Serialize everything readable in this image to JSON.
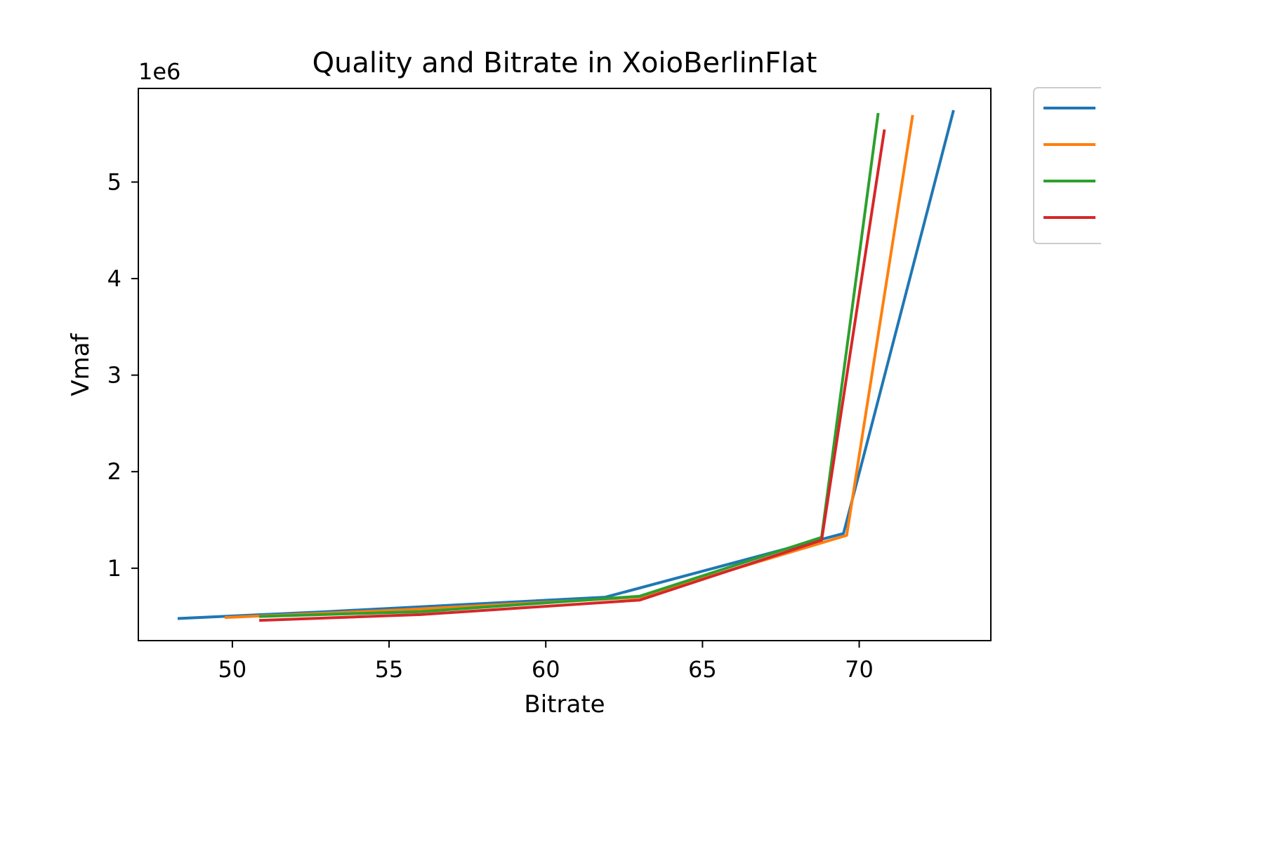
{
  "chart_data": {
    "type": "line",
    "title": "Quality and Bitrate in XoioBerlinFlat",
    "xlabel": "Bitrate",
    "ylabel": "Vmaf",
    "y_offset_label": "1e6",
    "xlim": [
      47,
      74.2
    ],
    "ylim": [
      0.25,
      5.97
    ],
    "x_ticks": [
      50,
      55,
      60,
      65,
      70
    ],
    "y_ticks": [
      1,
      2,
      3,
      4,
      5
    ],
    "grid": false,
    "legend": "upper right outside (entries without visible labels)",
    "series": [
      {
        "color": "#1f77b4",
        "points": [
          [
            48.3,
            0.48
          ],
          [
            53.0,
            0.55
          ],
          [
            61.9,
            0.7
          ],
          [
            69.5,
            1.36
          ],
          [
            73.0,
            5.73
          ]
        ]
      },
      {
        "color": "#ff7f0e",
        "points": [
          [
            49.8,
            0.49
          ],
          [
            55.5,
            0.57
          ],
          [
            63.0,
            0.7
          ],
          [
            69.6,
            1.34
          ],
          [
            71.7,
            5.68
          ]
        ]
      },
      {
        "color": "#2ca02c",
        "points": [
          [
            50.9,
            0.5
          ],
          [
            56.0,
            0.55
          ],
          [
            63.0,
            0.71
          ],
          [
            68.8,
            1.32
          ],
          [
            70.6,
            5.7
          ]
        ]
      },
      {
        "color": "#d62728",
        "points": [
          [
            50.9,
            0.46
          ],
          [
            56.0,
            0.52
          ],
          [
            63.0,
            0.67
          ],
          [
            68.8,
            1.29
          ],
          [
            70.8,
            5.53
          ]
        ]
      }
    ]
  }
}
